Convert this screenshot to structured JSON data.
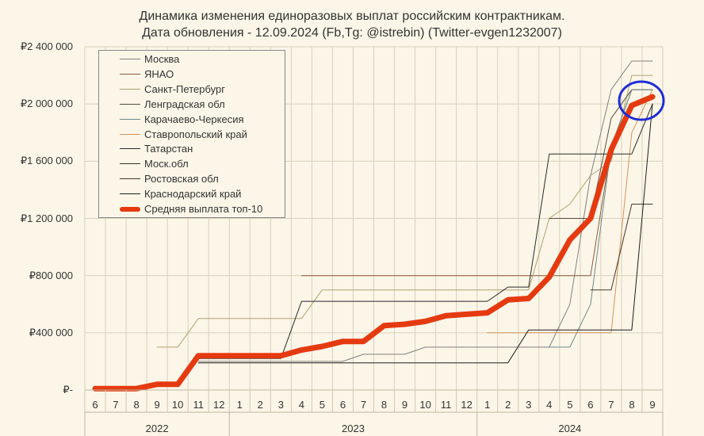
{
  "title_line1": "Динамика изменения единоразовых выплат российским контрактникам.",
  "title_line2": "Дата обновления - 12.09.2024      (Fb,Tg: @istrebin) (Twitter-evgen1232007)",
  "chart_data": {
    "type": "line",
    "categories": [
      "6",
      "7",
      "8",
      "9",
      "10",
      "11",
      "12",
      "1",
      "2",
      "3",
      "4",
      "5",
      "6",
      "7",
      "8",
      "9",
      "10",
      "11",
      "12",
      "1",
      "2",
      "3",
      "4",
      "5",
      "6",
      "7",
      "8",
      "9"
    ],
    "year_groups": [
      {
        "label": "2022",
        "from": 0,
        "to": 6
      },
      {
        "label": "2023",
        "from": 7,
        "to": 18
      },
      {
        "label": "2024",
        "from": 19,
        "to": 27
      }
    ],
    "y_ticks": [
      0,
      400000,
      800000,
      1200000,
      1600000,
      2000000,
      2400000
    ],
    "y_tick_labels": [
      "₽-",
      "₽400 000",
      "₽800 000",
      "₽1 200 000",
      "₽1 600 000",
      "₽2 000 000",
      "₽2 400 000"
    ],
    "ylim": [
      0,
      2400000
    ],
    "grid": true,
    "legend_position": "top-left",
    "series": [
      {
        "name": "Москва",
        "color": "#7f8080",
        "width": 1,
        "values": [
          null,
          null,
          null,
          null,
          null,
          200000,
          200000,
          200000,
          200000,
          200000,
          200000,
          200000,
          200000,
          250000,
          250000,
          250000,
          300000,
          300000,
          300000,
          300000,
          300000,
          300000,
          300000,
          600000,
          1500000,
          2100000,
          2300000,
          2300000
        ]
      },
      {
        "name": "ЯНАО",
        "color": "#8b5a3c",
        "width": 1,
        "values": [
          null,
          null,
          null,
          null,
          null,
          null,
          null,
          null,
          null,
          null,
          800000,
          800000,
          800000,
          800000,
          800000,
          800000,
          800000,
          800000,
          800000,
          800000,
          800000,
          800000,
          800000,
          800000,
          800000,
          1700000,
          2100000,
          2100000
        ]
      },
      {
        "name": "Санкт-Петербург",
        "color": "#b0a070",
        "width": 1,
        "values": [
          null,
          null,
          null,
          300000,
          300000,
          500000,
          500000,
          500000,
          500000,
          500000,
          500000,
          700000,
          700000,
          700000,
          700000,
          700000,
          700000,
          700000,
          700000,
          700000,
          700000,
          700000,
          1200000,
          1300000,
          1500000,
          1600000,
          2200000,
          2200000
        ]
      },
      {
        "name": "Ленградская обл",
        "color": "#5a4a3a",
        "width": 1,
        "values": [
          null,
          null,
          null,
          null,
          null,
          null,
          null,
          null,
          null,
          null,
          null,
          null,
          null,
          null,
          null,
          null,
          null,
          null,
          null,
          null,
          null,
          null,
          1200000,
          1200000,
          1200000,
          1900000,
          2100000,
          2100000
        ]
      },
      {
        "name": "Карачаево-Черкесия",
        "color": "#6a8a8a",
        "width": 1,
        "values": [
          null,
          null,
          null,
          null,
          null,
          null,
          null,
          null,
          null,
          null,
          null,
          null,
          null,
          null,
          null,
          null,
          null,
          null,
          null,
          null,
          null,
          null,
          300000,
          300000,
          600000,
          1700000,
          2100000,
          2100000
        ]
      },
      {
        "name": "Ставропольский край",
        "color": "#d2945a",
        "width": 1,
        "values": [
          null,
          null,
          null,
          null,
          null,
          null,
          null,
          null,
          null,
          null,
          null,
          null,
          null,
          null,
          null,
          null,
          null,
          null,
          null,
          400000,
          400000,
          400000,
          400000,
          400000,
          400000,
          400000,
          1800000,
          2100000
        ]
      },
      {
        "name": "Татарстан",
        "color": "#2a2a2a",
        "width": 1,
        "values": [
          null,
          null,
          null,
          null,
          null,
          220000,
          220000,
          220000,
          220000,
          220000,
          620000,
          620000,
          620000,
          620000,
          620000,
          620000,
          620000,
          620000,
          620000,
          620000,
          720000,
          720000,
          1650000,
          1650000,
          1650000,
          1650000,
          1650000,
          2000000
        ]
      },
      {
        "name": "Моск.обл",
        "color": "#3a3020",
        "width": 1,
        "values": [
          null,
          null,
          null,
          null,
          null,
          null,
          null,
          null,
          null,
          null,
          null,
          null,
          null,
          null,
          null,
          null,
          null,
          null,
          null,
          null,
          null,
          null,
          null,
          null,
          null,
          null,
          null,
          null
        ]
      },
      {
        "name": "Ростовская обл",
        "color": "#4a3525",
        "width": 1,
        "values": [
          null,
          null,
          null,
          null,
          null,
          null,
          null,
          null,
          null,
          null,
          null,
          null,
          null,
          null,
          null,
          null,
          null,
          null,
          null,
          null,
          null,
          null,
          null,
          null,
          700000,
          700000,
          1300000,
          1300000
        ]
      },
      {
        "name": "Краснодарский край",
        "color": "#1f1f1f",
        "width": 1,
        "values": [
          null,
          null,
          null,
          null,
          null,
          190000,
          190000,
          190000,
          190000,
          190000,
          190000,
          190000,
          190000,
          190000,
          190000,
          190000,
          190000,
          190000,
          190000,
          190000,
          190000,
          420000,
          420000,
          420000,
          420000,
          420000,
          420000,
          2000000
        ]
      },
      {
        "name": "Средняя выплата топ-10",
        "color": "#e53a10",
        "width": 7,
        "values": [
          10000,
          10000,
          10000,
          40000,
          40000,
          240000,
          240000,
          240000,
          240000,
          240000,
          280000,
          305000,
          340000,
          340000,
          450000,
          460000,
          480000,
          520000,
          530000,
          540000,
          630000,
          640000,
          790000,
          1050000,
          1200000,
          1680000,
          1990000,
          2050000
        ]
      }
    ],
    "extra_lines": [
      {
        "color": "#8a7a60",
        "values": [
          null,
          null,
          null,
          null,
          null,
          null,
          null,
          null,
          null,
          null,
          null,
          null,
          null,
          null,
          null,
          null,
          null,
          null,
          null,
          null,
          null,
          null,
          null,
          null,
          null,
          null,
          null,
          null
        ]
      }
    ],
    "annotation": {
      "type": "circle",
      "color": "#1e2ed6"
    }
  }
}
